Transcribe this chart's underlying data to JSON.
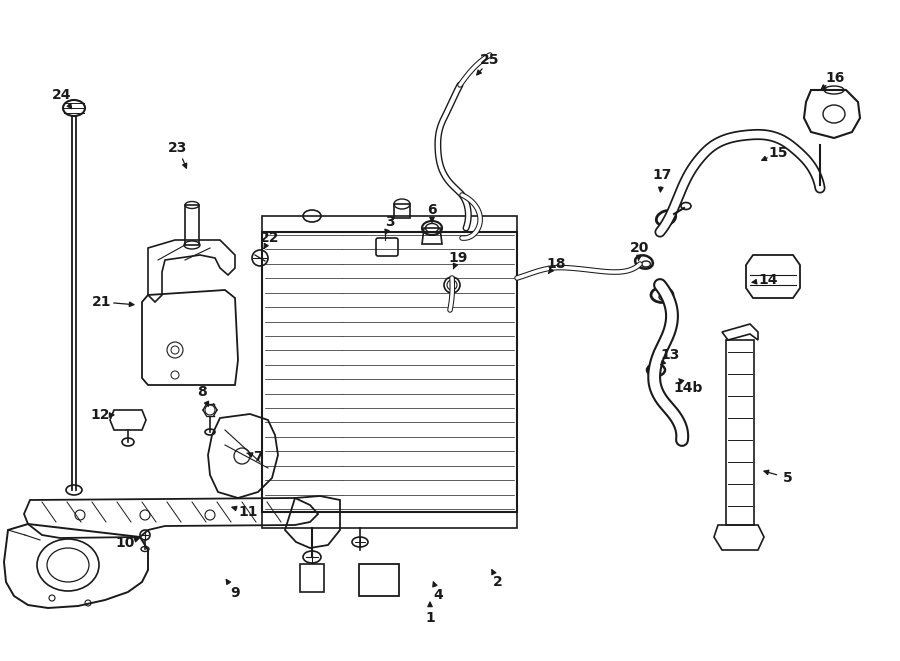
{
  "bg": "#ffffff",
  "lc": "#1a1a1a",
  "lw": 1.4,
  "labels": [
    [
      "1",
      430,
      618,
      430,
      598
    ],
    [
      "2",
      498,
      582,
      490,
      566
    ],
    [
      "3",
      390,
      222,
      384,
      238
    ],
    [
      "4",
      438,
      595,
      432,
      578
    ],
    [
      "5",
      788,
      478,
      760,
      470
    ],
    [
      "6",
      432,
      210,
      432,
      226
    ],
    [
      "7",
      258,
      457,
      244,
      452
    ],
    [
      "8",
      202,
      392,
      210,
      410
    ],
    [
      "9",
      235,
      593,
      224,
      576
    ],
    [
      "10",
      125,
      543,
      143,
      537
    ],
    [
      "11",
      248,
      512,
      228,
      506
    ],
    [
      "12",
      100,
      415,
      118,
      415
    ],
    [
      "13",
      670,
      355,
      658,
      368
    ],
    [
      "14",
      768,
      280,
      748,
      283
    ],
    [
      "14b",
      688,
      388,
      678,
      378
    ],
    [
      "15",
      778,
      153,
      758,
      162
    ],
    [
      "16",
      835,
      78,
      818,
      92
    ],
    [
      "17",
      662,
      175,
      660,
      196
    ],
    [
      "18",
      556,
      264,
      548,
      274
    ],
    [
      "19",
      458,
      258,
      452,
      272
    ],
    [
      "20",
      640,
      248,
      638,
      264
    ],
    [
      "21",
      102,
      302,
      138,
      305
    ],
    [
      "22",
      270,
      238,
      262,
      252
    ],
    [
      "23",
      178,
      148,
      188,
      172
    ],
    [
      "24",
      62,
      95,
      74,
      112
    ],
    [
      "25",
      490,
      60,
      474,
      78
    ]
  ]
}
